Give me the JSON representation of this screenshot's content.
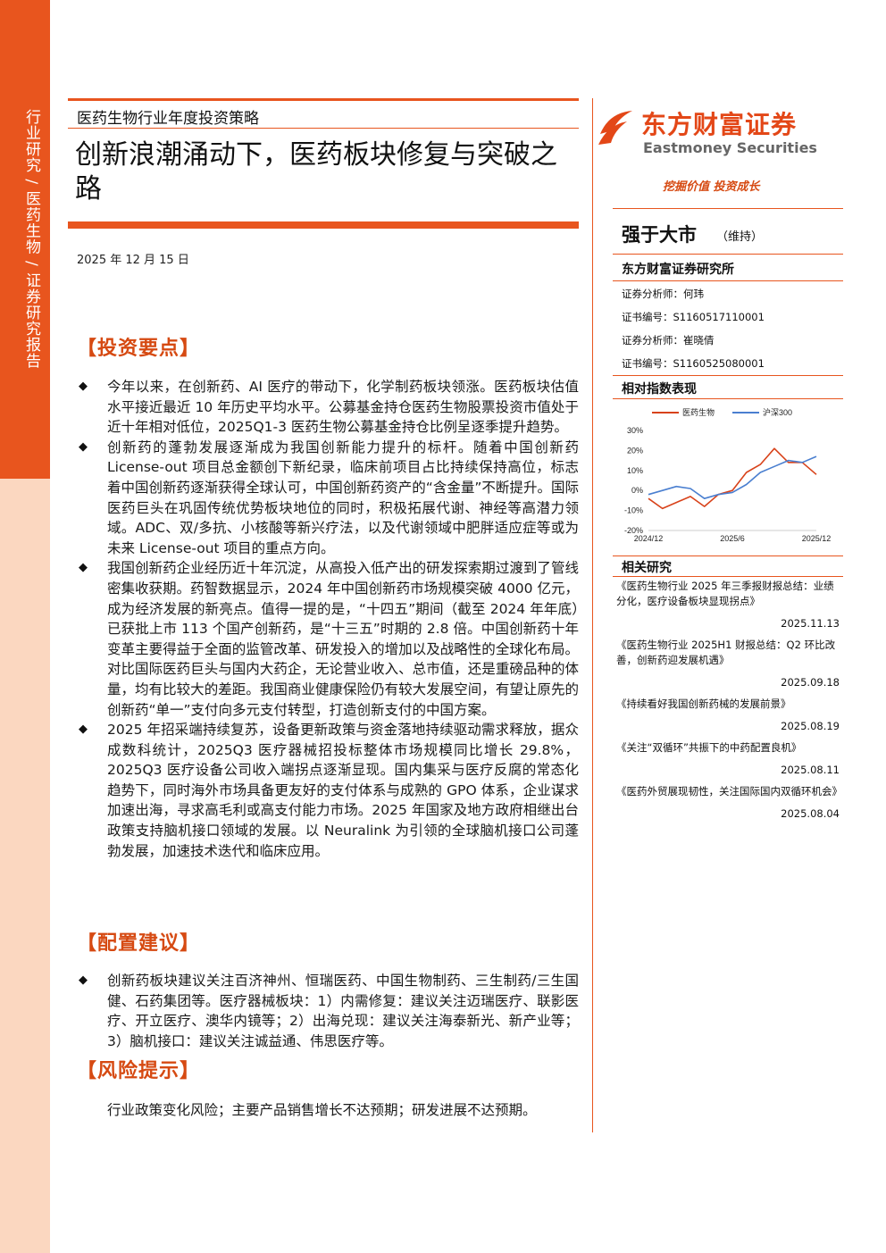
{
  "sidebar": {
    "label": "行业研究 / 医药生物 / 证券研究报告"
  },
  "header": {
    "report_type": "医药生物行业年度投资策略",
    "title": "创新浪潮涌动下，医药板块修复与突破之路",
    "date": "2025 年 12 月 15 日"
  },
  "sections": {
    "investment": {
      "title": "【投资要点】",
      "bullets": [
        "今年以来，在创新药、AI 医疗的带动下，化学制药板块领涨。医药板块估值水平接近最近 10 年历史平均水平。公募基金持仓医药生物股票投资市值处于近十年相对低位，2025Q1-3 医药生物公募基金持仓比例呈逐季提升趋势。",
        "创新药的蓬勃发展逐渐成为我国创新能力提升的标杆。随着中国创新药 License-out 项目总金额创下新纪录，临床前项目占比持续保持高位，标志着中国创新药逐渐获得全球认可，中国创新药资产的“含金量”不断提升。国际医药巨头在巩固传统优势板块地位的同时，积极拓展代谢、神经等高潜力领域。ADC、双/多抗、小核酸等新兴疗法，以及代谢领域中肥胖适应症等或为未来 License-out 项目的重点方向。",
        "我国创新药企业经历近十年沉淀，从高投入低产出的研发探索期过渡到了管线密集收获期。药智数据显示，2024 年中国创新药市场规模突破 4000 亿元，成为经济发展的新亮点。值得一提的是，“十四五”期间（截至 2024 年年底）已获批上市 113 个国产创新药，是“十三五”时期的 2.8 倍。中国创新药十年变革主要得益于全面的监管改革、研发投入的增加以及战略性的全球化布局。对比国际医药巨头与国内大药企，无论营业收入、总市值，还是重磅品种的体量，均有比较大的差距。我国商业健康保险仍有较大发展空间，有望让原先的创新药“单一”支付向多元支付转型，打造创新支付的中国方案。",
        "2025 年招采端持续复苏，设备更新政策与资金落地持续驱动需求释放，据众成数科统计，2025Q3 医疗器械招投标整体市场规模同比增长 29.8%，2025Q3 医疗设备公司收入端拐点逐渐显现。国内集采与医疗反腐的常态化趋势下，同时海外市场具备更友好的支付体系与成熟的 GPO 体系，企业谋求加速出海，寻求高毛利或高支付能力市场。2025 年国家及地方政府相继出台政策支持脑机接口领域的发展。以 Neuralink 为引领的全球脑机接口公司蓬勃发展，加速技术迭代和临床应用。"
      ]
    },
    "allocation": {
      "title": "【配置建议】",
      "bullets": [
        "创新药板块建议关注百济神州、恒瑞医药、中国生物制药、三生制药/三生国健、石药集团等。医疗器械板块：1）内需修复：建议关注迈瑞医疗、联影医疗、开立医疗、澳华内镜等；2）出海兑现：建议关注海泰新光、新产业等；3）脑机接口：建议关注诚益通、伟思医疗等。"
      ]
    },
    "risk": {
      "title": "【风险提示】",
      "text": "行业政策变化风险；主要产品销售增长不达预期；研发进展不达预期。"
    }
  },
  "brand": {
    "name_cn": "东方财富证券",
    "name_en": "Eastmoney Securities",
    "slogan": "挖掘价值 投资成长",
    "logo_icon": "eastmoney-logo-icon"
  },
  "rating": {
    "value": "强于大市",
    "note": "（维持）"
  },
  "institute": {
    "name": "东方财富证券研究所",
    "analysts": [
      "证券分析师：何玮",
      "证书编号：S1160517110001",
      "证券分析师：崔晓倩",
      "证书编号：S1160525080001"
    ]
  },
  "index_chart": {
    "title": "相对指数表现",
    "chart_data": {
      "type": "line",
      "x": [
        "2024/12",
        "2025/1",
        "2025/2",
        "2025/3",
        "2025/4",
        "2025/5",
        "2025/6",
        "2025/7",
        "2025/8",
        "2025/9",
        "2025/10",
        "2025/11",
        "2025/12"
      ],
      "x_ticks": [
        "2024/12",
        "2025/6",
        "2025/12"
      ],
      "y_ticks": [
        "30%",
        "20%",
        "10%",
        "0%",
        "-10%",
        "-20%"
      ],
      "ylim": [
        -20,
        30
      ],
      "legend_position": "top",
      "series": [
        {
          "name": "医药生物",
          "color": "#d8421a",
          "values": [
            -4,
            -9,
            -6,
            -3,
            -8,
            -2,
            0,
            9,
            13,
            21,
            14,
            14,
            8
          ]
        },
        {
          "name": "沪深300",
          "color": "#4a7fd0",
          "values": [
            -2,
            0,
            2,
            1,
            -4,
            -2,
            -1,
            3,
            9,
            12,
            15,
            14,
            17
          ]
        }
      ]
    }
  },
  "related_research": {
    "title": "相关研究",
    "items": [
      {
        "title": "《医药生物行业 2025 年三季报财报总结：业绩分化，医疗设备板块显现拐点》",
        "date": "2025.11.13"
      },
      {
        "title": "《医药生物行业 2025H1 财报总结：Q2 环比改善，创新药迎发展机遇》",
        "date": "2025.09.18"
      },
      {
        "title": "《持续看好我国创新药械的发展前景》",
        "date": "2025.08.19"
      },
      {
        "title": "《关注“双循环”共振下的中药配置良机》",
        "date": "2025.08.11"
      },
      {
        "title": "《医药外贸展现韧性，关注国际国内双循环机会》",
        "date": "2025.08.04"
      }
    ]
  }
}
